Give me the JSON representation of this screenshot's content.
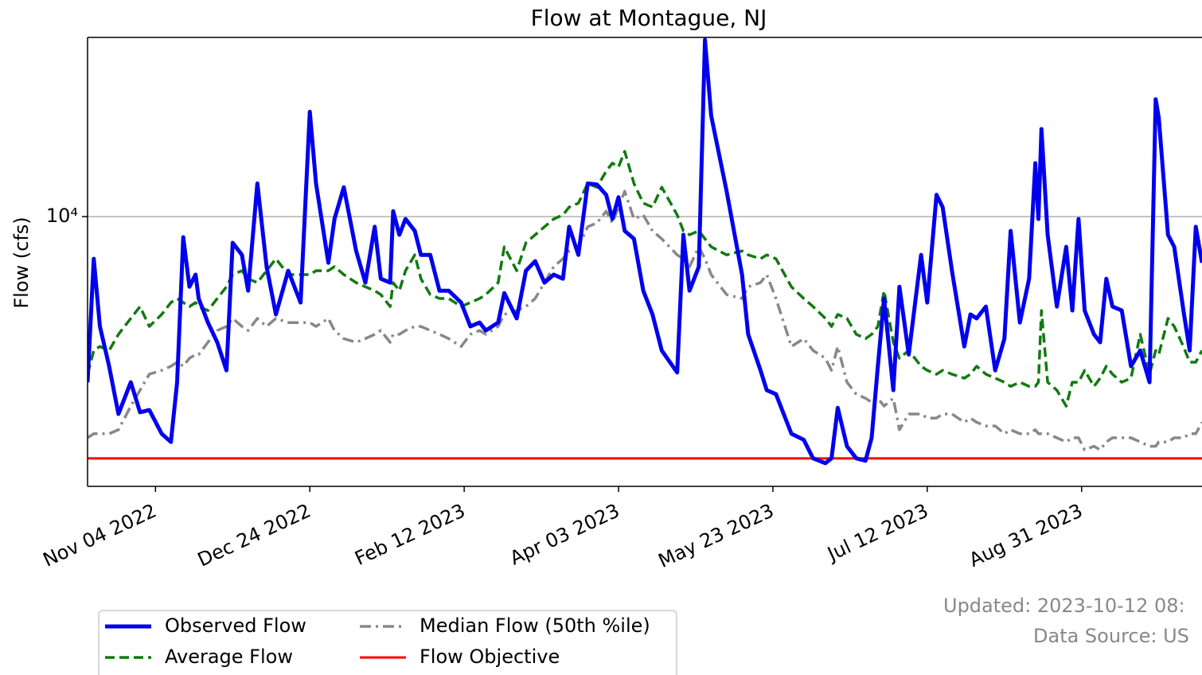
{
  "chart_data": {
    "type": "line",
    "title": "Flow at Montague, NJ",
    "y_label": "Flow (cfs)",
    "log_y": true,
    "grid": true,
    "legend_position": "bottom-left",
    "notes": [
      "Updated: 2023-10-12 08:",
      "Data Source: US"
    ],
    "xlim": [
      "2022-10-13",
      "2023-10-09"
    ],
    "ylim": [
      1430,
      36400
    ],
    "xticks": [
      {
        "value": "2022-11-04",
        "label": "Nov 04 2022"
      },
      {
        "value": "2022-12-24",
        "label": "Dec 24 2022"
      },
      {
        "value": "2023-02-12",
        "label": "Feb 12 2023"
      },
      {
        "value": "2023-04-03",
        "label": "Apr 03 2023"
      },
      {
        "value": "2023-05-23",
        "label": "May 23 2023"
      },
      {
        "value": "2023-07-12",
        "label": "Jul 12 2023"
      },
      {
        "value": "2023-08-31",
        "label": "Aug 31 2023"
      }
    ],
    "yticks": [
      {
        "value": 10000,
        "label": "10⁴"
      }
    ],
    "x": [
      "2022-10-13",
      "2022-10-15",
      "2022-10-17",
      "2022-10-20",
      "2022-10-23",
      "2022-10-27",
      "2022-10-30",
      "2022-11-02",
      "2022-11-06",
      "2022-11-09",
      "2022-11-11",
      "2022-11-13",
      "2022-11-15",
      "2022-11-17",
      "2022-11-18",
      "2022-11-21",
      "2022-11-24",
      "2022-11-27",
      "2022-11-29",
      "2022-12-02",
      "2022-12-04",
      "2022-12-07",
      "2022-12-10",
      "2022-12-13",
      "2022-12-17",
      "2022-12-21",
      "2022-12-24",
      "2022-12-26",
      "2022-12-30",
      "2023-01-01",
      "2023-01-04",
      "2023-01-08",
      "2023-01-11",
      "2023-01-14",
      "2023-01-16",
      "2023-01-19",
      "2023-01-20",
      "2023-01-22",
      "2023-01-24",
      "2023-01-27",
      "2023-01-29",
      "2023-02-01",
      "2023-02-04",
      "2023-02-07",
      "2023-02-11",
      "2023-02-14",
      "2023-02-17",
      "2023-02-19",
      "2023-02-23",
      "2023-02-25",
      "2023-03-01",
      "2023-03-04",
      "2023-03-07",
      "2023-03-10",
      "2023-03-13",
      "2023-03-16",
      "2023-03-18",
      "2023-03-21",
      "2023-03-24",
      "2023-03-27",
      "2023-03-30",
      "2023-04-01",
      "2023-04-03",
      "2023-04-05",
      "2023-04-08",
      "2023-04-11",
      "2023-04-14",
      "2023-04-17",
      "2023-04-22",
      "2023-04-24",
      "2023-04-26",
      "2023-04-29",
      "2023-05-01",
      "2023-05-03",
      "2023-05-08",
      "2023-05-13",
      "2023-05-15",
      "2023-05-19",
      "2023-05-21",
      "2023-05-24",
      "2023-05-29",
      "2023-06-02",
      "2023-06-05",
      "2023-06-09",
      "2023-06-11",
      "2023-06-13",
      "2023-06-16",
      "2023-06-19",
      "2023-06-22",
      "2023-06-24",
      "2023-06-26",
      "2023-06-28",
      "2023-07-01",
      "2023-07-03",
      "2023-07-06",
      "2023-07-10",
      "2023-07-12",
      "2023-07-15",
      "2023-07-17",
      "2023-07-20",
      "2023-07-24",
      "2023-07-26",
      "2023-07-28",
      "2023-07-31",
      "2023-08-03",
      "2023-08-06",
      "2023-08-08",
      "2023-08-11",
      "2023-08-14",
      "2023-08-16",
      "2023-08-17",
      "2023-08-18",
      "2023-08-20",
      "2023-08-23",
      "2023-08-26",
      "2023-08-28",
      "2023-08-30",
      "2023-09-01",
      "2023-09-04",
      "2023-09-06",
      "2023-09-08",
      "2023-09-10",
      "2023-09-13",
      "2023-09-16",
      "2023-09-19",
      "2023-09-22",
      "2023-09-24",
      "2023-09-25",
      "2023-09-28",
      "2023-09-30",
      "2023-10-03",
      "2023-10-05",
      "2023-10-07",
      "2023-10-09"
    ],
    "series": [
      {
        "name": "Observed Flow",
        "color": "#0000ee",
        "style": "solid",
        "values": [
          3030,
          7380,
          4530,
          3400,
          2410,
          3030,
          2440,
          2480,
          2090,
          1970,
          3030,
          8620,
          6030,
          6580,
          5540,
          4660,
          4040,
          3300,
          8280,
          7590,
          5860,
          12700,
          6970,
          4940,
          6770,
          5380,
          21300,
          12700,
          7170,
          9830,
          12360,
          7810,
          6210,
          9290,
          6390,
          6210,
          10400,
          8770,
          9830,
          9020,
          7590,
          7590,
          5860,
          5860,
          5380,
          4530,
          4660,
          4400,
          4660,
          5760,
          4800,
          6770,
          7250,
          6210,
          6580,
          6390,
          9290,
          7590,
          12700,
          12600,
          11700,
          9830,
          11500,
          9020,
          8520,
          5860,
          4940,
          3810,
          3250,
          8770,
          5860,
          6970,
          35800,
          20700,
          12000,
          6580,
          4280,
          3300,
          2860,
          2780,
          2090,
          2000,
          1750,
          1690,
          1750,
          2520,
          1910,
          1750,
          1720,
          2030,
          3400,
          5540,
          2860,
          6030,
          3700,
          7590,
          5380,
          11700,
          10700,
          6770,
          3920,
          4940,
          4800,
          5230,
          3300,
          4150,
          9020,
          4660,
          6390,
          14700,
          9830,
          18800,
          8770,
          5230,
          8040,
          5080,
          9830,
          5080,
          4280,
          4040,
          6390,
          5230,
          5080,
          3400,
          3810,
          3030,
          23300,
          20400,
          8770,
          8040,
          5080,
          3810,
          9290,
          7170
        ]
      },
      {
        "name": "Average Flow",
        "color": "#117a11",
        "style": "dashed",
        "values": [
          3210,
          3810,
          3920,
          3810,
          4280,
          4800,
          5230,
          4530,
          4940,
          5380,
          5540,
          5380,
          5230,
          5380,
          5230,
          5080,
          5540,
          6030,
          6580,
          6770,
          6390,
          6210,
          6770,
          7380,
          6580,
          6580,
          6580,
          6770,
          6770,
          6970,
          6580,
          6210,
          6030,
          5860,
          5700,
          5230,
          6210,
          5860,
          6770,
          7590,
          6390,
          5700,
          5540,
          5540,
          5230,
          5380,
          5540,
          5700,
          6210,
          8040,
          6770,
          8280,
          8770,
          9290,
          9830,
          10120,
          10710,
          11020,
          12700,
          12360,
          13870,
          14700,
          14300,
          16000,
          12700,
          11020,
          10710,
          12360,
          10120,
          9020,
          8770,
          9020,
          8520,
          8040,
          7590,
          7810,
          7590,
          7380,
          7590,
          7380,
          6030,
          5540,
          5230,
          4800,
          4530,
          4940,
          4800,
          4280,
          4150,
          4280,
          4530,
          5860,
          4040,
          3600,
          3810,
          3400,
          3300,
          3210,
          3300,
          3210,
          3120,
          3210,
          3400,
          3210,
          3120,
          3030,
          2940,
          3030,
          2940,
          2940,
          3030,
          5080,
          3030,
          2860,
          2550,
          3030,
          3030,
          3300,
          2940,
          3120,
          3400,
          3210,
          3030,
          3120,
          4280,
          3210,
          3810,
          3700,
          4800,
          4530,
          3920,
          3500,
          3500,
          3810
        ]
      },
      {
        "name": "Median Flow (50th %ile)",
        "color": "#888888",
        "style": "dashdot",
        "values": [
          2030,
          2090,
          2090,
          2090,
          2150,
          2550,
          2860,
          3210,
          3300,
          3400,
          3500,
          3400,
          3600,
          3700,
          3700,
          4040,
          4400,
          4530,
          4800,
          4530,
          4400,
          4800,
          4530,
          4800,
          4660,
          4660,
          4660,
          4530,
          4800,
          4400,
          4150,
          4040,
          4150,
          4280,
          4400,
          4040,
          4280,
          4280,
          4400,
          4530,
          4530,
          4400,
          4280,
          4150,
          3920,
          4280,
          4400,
          4280,
          4530,
          4940,
          5080,
          5230,
          5540,
          6210,
          6970,
          7380,
          7810,
          8040,
          9290,
          9550,
          10400,
          9550,
          10710,
          12000,
          9830,
          10120,
          9020,
          8520,
          7590,
          7380,
          6970,
          8040,
          7380,
          6580,
          5700,
          5540,
          6030,
          6210,
          6580,
          5540,
          3920,
          4150,
          3810,
          3600,
          3300,
          3920,
          3030,
          2780,
          2700,
          2620,
          2700,
          2550,
          2700,
          2150,
          2410,
          2410,
          2340,
          2340,
          2410,
          2410,
          2270,
          2340,
          2270,
          2210,
          2210,
          2090,
          2150,
          2090,
          2090,
          2150,
          2090,
          2090,
          2090,
          2030,
          1970,
          2030,
          2030,
          1860,
          1910,
          1860,
          1970,
          2030,
          2030,
          2030,
          1970,
          1910,
          1910,
          1970,
          1970,
          2030,
          2030,
          2090,
          2090,
          2270
        ]
      }
    ],
    "hlines": [
      {
        "name": "Flow Objective",
        "color": "#ff0000",
        "value": 1750
      }
    ]
  }
}
